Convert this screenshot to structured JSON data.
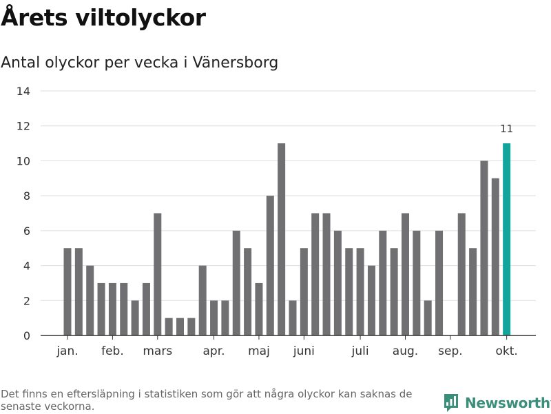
{
  "title": "Årets viltolyckor",
  "subtitle": "Antal olyckor per vecka i Vänersborg",
  "footnote": "Det finns en eftersläpning i statistiken som gör att några olyckor kan saknas de senaste veckorna.",
  "logo": {
    "text": "Newsworthy",
    "icon": "newsworthy-logo-icon"
  },
  "colors": {
    "bar": "#707072",
    "highlight": "#11a59b",
    "grid": "#dddddd",
    "axis": "#333333",
    "logo": "#3a8f7b"
  },
  "chart_data": {
    "type": "bar",
    "title": "Årets viltolyckor",
    "subtitle": "Antal olyckor per vecka i Vänersborg",
    "xlabel": "",
    "ylabel": "",
    "ylim": [
      0,
      14
    ],
    "yticks": [
      0,
      2,
      4,
      6,
      8,
      10,
      12,
      14
    ],
    "grid": true,
    "weeks": [
      1,
      2,
      3,
      4,
      5,
      6,
      7,
      8,
      9,
      10,
      11,
      12,
      13,
      14,
      15,
      16,
      17,
      18,
      19,
      20,
      21,
      22,
      23,
      24,
      25,
      26,
      27,
      28,
      29,
      30,
      31,
      32,
      33,
      34,
      35,
      36,
      37,
      38,
      39,
      40
    ],
    "values": [
      5,
      5,
      4,
      3,
      3,
      3,
      2,
      3,
      7,
      1,
      1,
      1,
      4,
      2,
      2,
      6,
      5,
      3,
      8,
      11,
      2,
      5,
      7,
      7,
      6,
      5,
      5,
      4,
      6,
      5,
      7,
      6,
      2,
      6,
      0,
      7,
      5,
      10,
      9,
      11
    ],
    "highlight_index": 39,
    "highlight_label": "11",
    "month_labels": [
      {
        "label": "jan.",
        "week": 1
      },
      {
        "label": "feb.",
        "week": 5
      },
      {
        "label": "mars",
        "week": 9
      },
      {
        "label": "apr.",
        "week": 14
      },
      {
        "label": "maj",
        "week": 18
      },
      {
        "label": "juni",
        "week": 22
      },
      {
        "label": "juli",
        "week": 27
      },
      {
        "label": "aug.",
        "week": 31
      },
      {
        "label": "sep.",
        "week": 35
      },
      {
        "label": "okt.",
        "week": 40
      }
    ]
  }
}
